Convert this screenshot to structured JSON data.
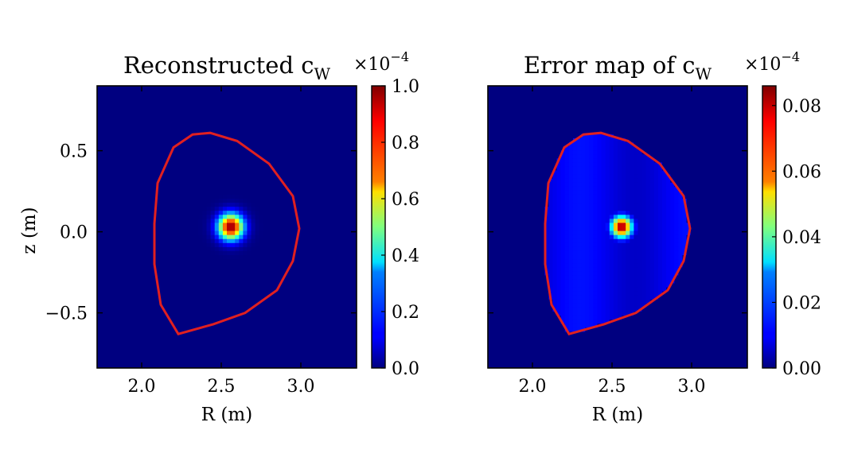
{
  "figure": {
    "left_panel": {
      "title_main": "Reconstructed c",
      "title_sub": "W",
      "xlabel": "R (m)",
      "ylabel": "z (m)",
      "colorbar_multiplier_base": "×10",
      "colorbar_multiplier_exp": "−4"
    },
    "right_panel": {
      "title_main": "Error map of c",
      "title_sub": "W",
      "xlabel": "R (m)",
      "colorbar_multiplier_base": "×10",
      "colorbar_multiplier_exp": "−4"
    }
  },
  "chart_data": [
    {
      "type": "heatmap",
      "title": "Reconstructed c_W",
      "xlabel": "R (m)",
      "ylabel": "z (m)",
      "xlim": [
        1.72,
        3.35
      ],
      "ylim": [
        -0.84,
        0.9
      ],
      "xticks": [
        2.0,
        2.5,
        3.0
      ],
      "xtick_labels": [
        "2.0",
        "2.5",
        "3.0"
      ],
      "yticks": [
        0.5,
        0.0,
        -0.5
      ],
      "ytick_labels": [
        "0.5",
        "0.0",
        "−0.5"
      ],
      "colormap": "jet",
      "colorbar": {
        "range": [
          0.0,
          1.0
        ],
        "ticks": [
          0.0,
          0.2,
          0.4,
          0.6,
          0.8,
          1.0
        ],
        "tick_labels": [
          "0.0",
          "0.2",
          "0.4",
          "0.6",
          "0.8",
          "1.0"
        ],
        "multiplier": "×10^-4"
      },
      "peak": {
        "R": 2.56,
        "z": 0.03,
        "value": 1.0,
        "sigma_m": 0.055
      },
      "boundary": {
        "color": "#e02020",
        "points": [
          [
            2.23,
            -0.63
          ],
          [
            2.12,
            -0.45
          ],
          [
            2.08,
            -0.2
          ],
          [
            2.08,
            0.05
          ],
          [
            2.1,
            0.3
          ],
          [
            2.2,
            0.52
          ],
          [
            2.32,
            0.6
          ],
          [
            2.43,
            0.61
          ],
          [
            2.6,
            0.56
          ],
          [
            2.8,
            0.42
          ],
          [
            2.95,
            0.22
          ],
          [
            2.99,
            0.02
          ],
          [
            2.95,
            -0.18
          ],
          [
            2.85,
            -0.36
          ],
          [
            2.65,
            -0.5
          ],
          [
            2.45,
            -0.57
          ],
          [
            2.23,
            -0.63
          ]
        ]
      }
    },
    {
      "type": "heatmap",
      "title": "Error map of c_W",
      "xlabel": "R (m)",
      "xlim": [
        1.72,
        3.35
      ],
      "ylim": [
        -0.84,
        0.9
      ],
      "xticks": [
        2.0,
        2.5,
        3.0
      ],
      "xtick_labels": [
        "2.0",
        "2.5",
        "3.0"
      ],
      "colormap": "jet",
      "colorbar": {
        "range": [
          0.0,
          0.086
        ],
        "ticks": [
          0.0,
          0.02,
          0.04,
          0.06,
          0.08
        ],
        "tick_labels": [
          "0.00",
          "0.02",
          "0.04",
          "0.06",
          "0.08"
        ],
        "multiplier": "×10^-4"
      },
      "peak": {
        "R": 2.56,
        "z": 0.03,
        "value": 0.086,
        "sigma_m": 0.045
      },
      "inside_background": 0.012,
      "boundary": {
        "color": "#e02020",
        "points": [
          [
            2.23,
            -0.63
          ],
          [
            2.12,
            -0.45
          ],
          [
            2.08,
            -0.2
          ],
          [
            2.08,
            0.05
          ],
          [
            2.1,
            0.3
          ],
          [
            2.2,
            0.52
          ],
          [
            2.32,
            0.6
          ],
          [
            2.43,
            0.61
          ],
          [
            2.6,
            0.56
          ],
          [
            2.8,
            0.42
          ],
          [
            2.95,
            0.22
          ],
          [
            2.99,
            0.02
          ],
          [
            2.95,
            -0.18
          ],
          [
            2.85,
            -0.36
          ],
          [
            2.65,
            -0.5
          ],
          [
            2.45,
            -0.57
          ],
          [
            2.23,
            -0.63
          ]
        ]
      }
    }
  ]
}
